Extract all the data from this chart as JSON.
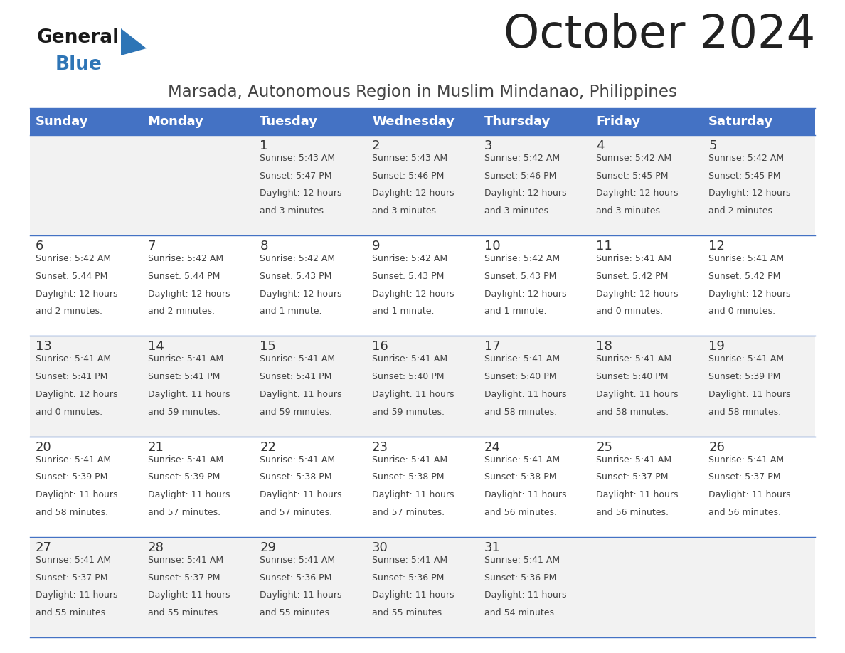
{
  "title": "October 2024",
  "subtitle": "Marsada, Autonomous Region in Muslim Mindanao, Philippines",
  "days_of_week": [
    "Sunday",
    "Monday",
    "Tuesday",
    "Wednesday",
    "Thursday",
    "Friday",
    "Saturday"
  ],
  "header_bg": "#4472C4",
  "header_text": "#FFFFFF",
  "cell_bg_odd": "#F2F2F2",
  "cell_bg_even": "#FFFFFF",
  "border_color": "#4472C4",
  "title_color": "#222222",
  "subtitle_color": "#444444",
  "day_number_color": "#333333",
  "cell_text_color": "#444444",
  "logo_general_color": "#1a1a1a",
  "logo_blue_color": "#2E75B6",
  "logo_triangle_color": "#2E75B6",
  "calendar": [
    [
      {
        "day": null,
        "sunrise": null,
        "sunset": null,
        "daylight": null
      },
      {
        "day": null,
        "sunrise": null,
        "sunset": null,
        "daylight": null
      },
      {
        "day": 1,
        "sunrise": "5:43 AM",
        "sunset": "5:47 PM",
        "daylight": "12 hours and 3 minutes."
      },
      {
        "day": 2,
        "sunrise": "5:43 AM",
        "sunset": "5:46 PM",
        "daylight": "12 hours and 3 minutes."
      },
      {
        "day": 3,
        "sunrise": "5:42 AM",
        "sunset": "5:46 PM",
        "daylight": "12 hours and 3 minutes."
      },
      {
        "day": 4,
        "sunrise": "5:42 AM",
        "sunset": "5:45 PM",
        "daylight": "12 hours and 3 minutes."
      },
      {
        "day": 5,
        "sunrise": "5:42 AM",
        "sunset": "5:45 PM",
        "daylight": "12 hours and 2 minutes."
      }
    ],
    [
      {
        "day": 6,
        "sunrise": "5:42 AM",
        "sunset": "5:44 PM",
        "daylight": "12 hours and 2 minutes."
      },
      {
        "day": 7,
        "sunrise": "5:42 AM",
        "sunset": "5:44 PM",
        "daylight": "12 hours and 2 minutes."
      },
      {
        "day": 8,
        "sunrise": "5:42 AM",
        "sunset": "5:43 PM",
        "daylight": "12 hours and 1 minute."
      },
      {
        "day": 9,
        "sunrise": "5:42 AM",
        "sunset": "5:43 PM",
        "daylight": "12 hours and 1 minute."
      },
      {
        "day": 10,
        "sunrise": "5:42 AM",
        "sunset": "5:43 PM",
        "daylight": "12 hours and 1 minute."
      },
      {
        "day": 11,
        "sunrise": "5:41 AM",
        "sunset": "5:42 PM",
        "daylight": "12 hours and 0 minutes."
      },
      {
        "day": 12,
        "sunrise": "5:41 AM",
        "sunset": "5:42 PM",
        "daylight": "12 hours and 0 minutes."
      }
    ],
    [
      {
        "day": 13,
        "sunrise": "5:41 AM",
        "sunset": "5:41 PM",
        "daylight": "12 hours and 0 minutes."
      },
      {
        "day": 14,
        "sunrise": "5:41 AM",
        "sunset": "5:41 PM",
        "daylight": "11 hours and 59 minutes."
      },
      {
        "day": 15,
        "sunrise": "5:41 AM",
        "sunset": "5:41 PM",
        "daylight": "11 hours and 59 minutes."
      },
      {
        "day": 16,
        "sunrise": "5:41 AM",
        "sunset": "5:40 PM",
        "daylight": "11 hours and 59 minutes."
      },
      {
        "day": 17,
        "sunrise": "5:41 AM",
        "sunset": "5:40 PM",
        "daylight": "11 hours and 58 minutes."
      },
      {
        "day": 18,
        "sunrise": "5:41 AM",
        "sunset": "5:40 PM",
        "daylight": "11 hours and 58 minutes."
      },
      {
        "day": 19,
        "sunrise": "5:41 AM",
        "sunset": "5:39 PM",
        "daylight": "11 hours and 58 minutes."
      }
    ],
    [
      {
        "day": 20,
        "sunrise": "5:41 AM",
        "sunset": "5:39 PM",
        "daylight": "11 hours and 58 minutes."
      },
      {
        "day": 21,
        "sunrise": "5:41 AM",
        "sunset": "5:39 PM",
        "daylight": "11 hours and 57 minutes."
      },
      {
        "day": 22,
        "sunrise": "5:41 AM",
        "sunset": "5:38 PM",
        "daylight": "11 hours and 57 minutes."
      },
      {
        "day": 23,
        "sunrise": "5:41 AM",
        "sunset": "5:38 PM",
        "daylight": "11 hours and 57 minutes."
      },
      {
        "day": 24,
        "sunrise": "5:41 AM",
        "sunset": "5:38 PM",
        "daylight": "11 hours and 56 minutes."
      },
      {
        "day": 25,
        "sunrise": "5:41 AM",
        "sunset": "5:37 PM",
        "daylight": "11 hours and 56 minutes."
      },
      {
        "day": 26,
        "sunrise": "5:41 AM",
        "sunset": "5:37 PM",
        "daylight": "11 hours and 56 minutes."
      }
    ],
    [
      {
        "day": 27,
        "sunrise": "5:41 AM",
        "sunset": "5:37 PM",
        "daylight": "11 hours and 55 minutes."
      },
      {
        "day": 28,
        "sunrise": "5:41 AM",
        "sunset": "5:37 PM",
        "daylight": "11 hours and 55 minutes."
      },
      {
        "day": 29,
        "sunrise": "5:41 AM",
        "sunset": "5:36 PM",
        "daylight": "11 hours and 55 minutes."
      },
      {
        "day": 30,
        "sunrise": "5:41 AM",
        "sunset": "5:36 PM",
        "daylight": "11 hours and 55 minutes."
      },
      {
        "day": 31,
        "sunrise": "5:41 AM",
        "sunset": "5:36 PM",
        "daylight": "11 hours and 54 minutes."
      },
      {
        "day": null,
        "sunrise": null,
        "sunset": null,
        "daylight": null
      },
      {
        "day": null,
        "sunrise": null,
        "sunset": null,
        "daylight": null
      }
    ]
  ]
}
